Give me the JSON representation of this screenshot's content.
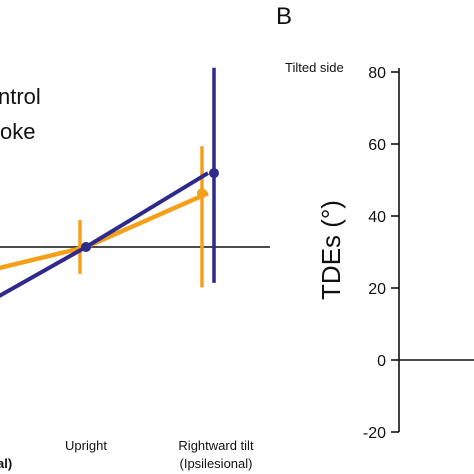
{
  "chart_data": [
    {
      "type": "line",
      "categories": [
        "",
        "Upright",
        "Rightward tilt"
      ],
      "category_sublabels": [
        "al)",
        "",
        "(Ipsilesional)"
      ],
      "series": [
        {
          "name": "ntrol",
          "color": "#F5A01A",
          "values": [
            -12,
            0,
            24
          ],
          "err_low": [
            null,
            -12,
            -18
          ],
          "err_high": [
            null,
            12,
            45
          ]
        },
        {
          "name": "oke",
          "color": "#2E2A8C",
          "values": [
            -28,
            0,
            33
          ],
          "err_low": [
            null,
            null,
            -16
          ],
          "err_high": [
            null,
            null,
            80
          ]
        }
      ],
      "reference_line_y": 0
    },
    {
      "type": "scatter",
      "panel_label": "B",
      "annotation": "Tilted side",
      "ylabel": "TDEs (°)",
      "ylim": [
        -20,
        80
      ],
      "yticks": [
        "-20",
        "0",
        "20",
        "40",
        "60",
        "80"
      ],
      "reference_line_y": 0
    }
  ]
}
